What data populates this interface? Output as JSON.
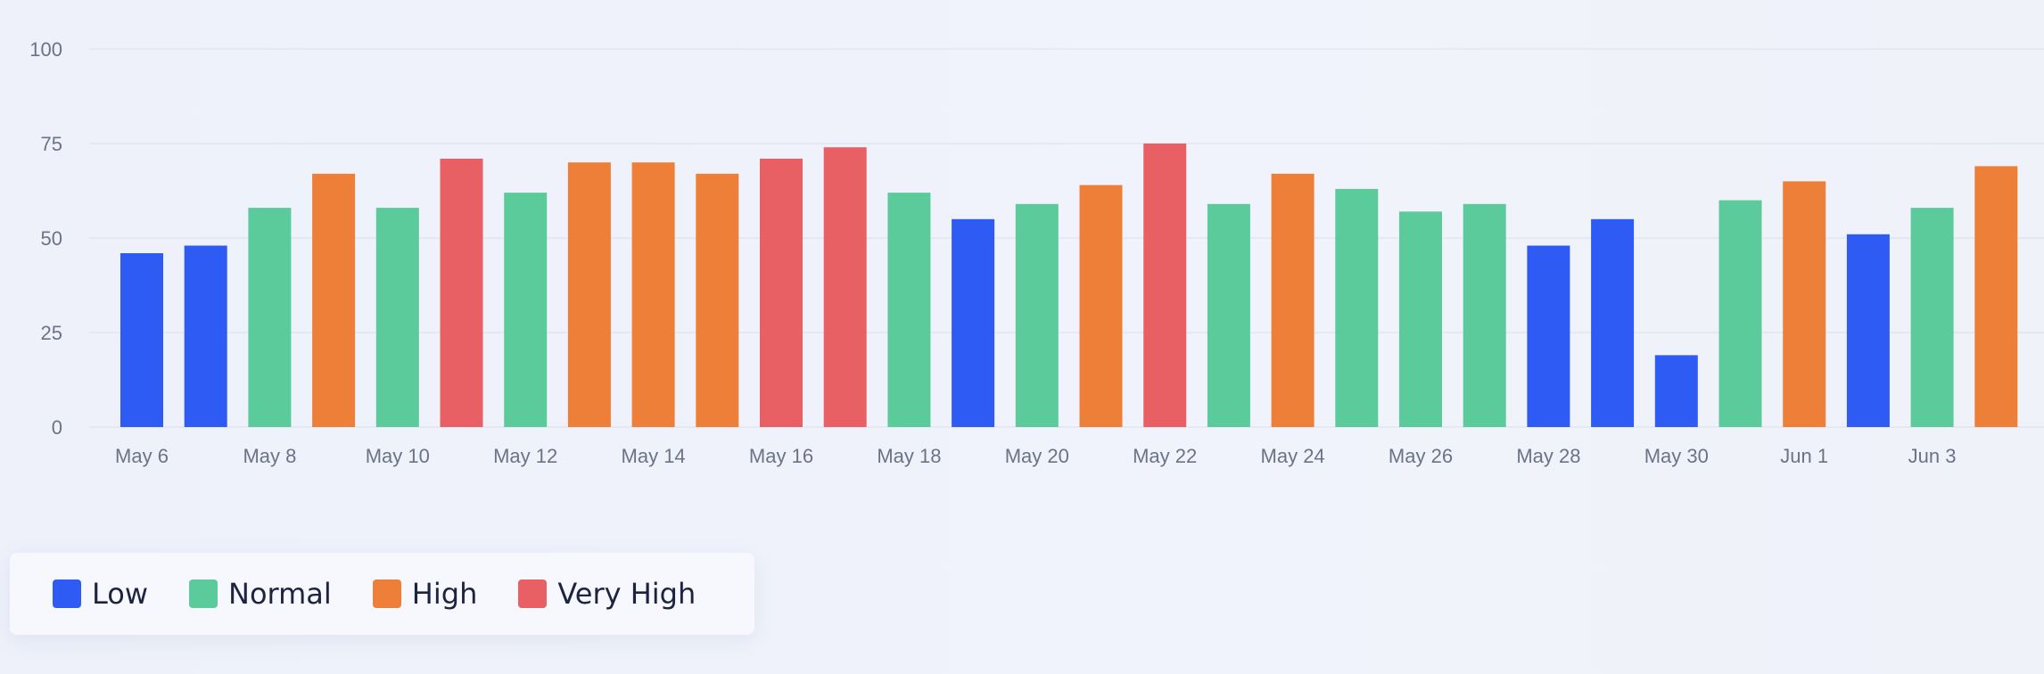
{
  "chart_data": {
    "type": "bar",
    "categories": [
      "May 6",
      "May 7",
      "May 8",
      "May 9",
      "May 10",
      "May 11",
      "May 12",
      "May 13",
      "May 14",
      "May 15",
      "May 16",
      "May 17",
      "May 18",
      "May 19",
      "May 20",
      "May 21",
      "May 22",
      "May 23",
      "May 24",
      "May 25",
      "May 26",
      "May 27",
      "May 28",
      "May 29",
      "May 30",
      "May 31",
      "Jun 1",
      "Jun 2",
      "Jun 3",
      "Jun 4"
    ],
    "values": [
      46,
      48,
      58,
      67,
      58,
      71,
      62,
      70,
      70,
      67,
      71,
      74,
      62,
      55,
      59,
      64,
      75,
      59,
      67,
      63,
      57,
      59,
      48,
      55,
      19,
      60,
      65,
      51,
      58,
      69
    ],
    "levels": [
      "Low",
      "Low",
      "Normal",
      "High",
      "Normal",
      "Very High",
      "Normal",
      "High",
      "High",
      "High",
      "Very High",
      "Very High",
      "Normal",
      "Low",
      "Normal",
      "High",
      "Very High",
      "Normal",
      "High",
      "Normal",
      "Normal",
      "Normal",
      "Low",
      "Low",
      "Low",
      "Normal",
      "High",
      "Low",
      "Normal",
      "High"
    ],
    "x_tick_labels": [
      "May 6",
      "May 8",
      "May 10",
      "May 12",
      "May 14",
      "May 16",
      "May 18",
      "May 20",
      "May 22",
      "May 24",
      "May 26",
      "May 28",
      "May 30",
      "Jun 1",
      "Jun 3"
    ],
    "y_ticks": [
      0,
      25,
      50,
      75,
      100
    ],
    "ylim": [
      0,
      100
    ],
    "grid": true,
    "legend_position": "bottom-left",
    "legend": [
      {
        "name": "Low",
        "color": "#2f5bf5"
      },
      {
        "name": "Normal",
        "color": "#5ccb9b"
      },
      {
        "name": "High",
        "color": "#ee7f38"
      },
      {
        "name": "Very High",
        "color": "#e86064"
      }
    ],
    "title": "",
    "xlabel": "",
    "ylabel": ""
  }
}
